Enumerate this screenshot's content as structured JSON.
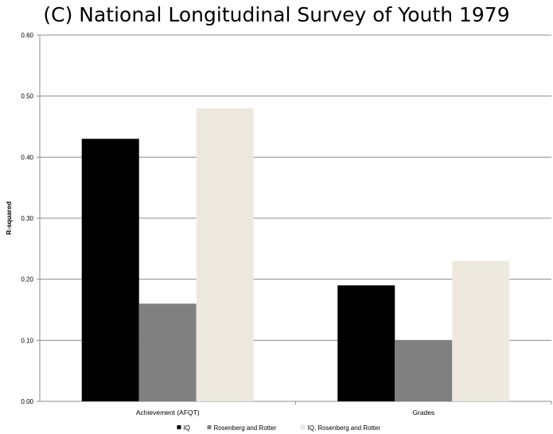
{
  "chart_data": {
    "type": "bar",
    "title": "(C) National Longitudinal Survey of Youth 1979",
    "ylabel": "R-squared",
    "xlabel": "",
    "ylim": [
      0,
      0.6
    ],
    "yticks": [
      "0.00",
      "0.10",
      "0.20",
      "0.30",
      "0.40",
      "0.50",
      "0.60"
    ],
    "grid": true,
    "legend_position": "bottom",
    "categories": [
      "Achievement (AFQT)",
      "Grades"
    ],
    "series": [
      {
        "name": "IQ",
        "values": [
          0.43,
          0.19
        ],
        "color": "#000000"
      },
      {
        "name": "Rosenberg and Rotter",
        "values": [
          0.16,
          0.1
        ],
        "color": "#808080"
      },
      {
        "name": "IQ, Rosenberg and Rotter",
        "values": [
          0.48,
          0.23
        ],
        "color": "#ede9df"
      }
    ]
  }
}
